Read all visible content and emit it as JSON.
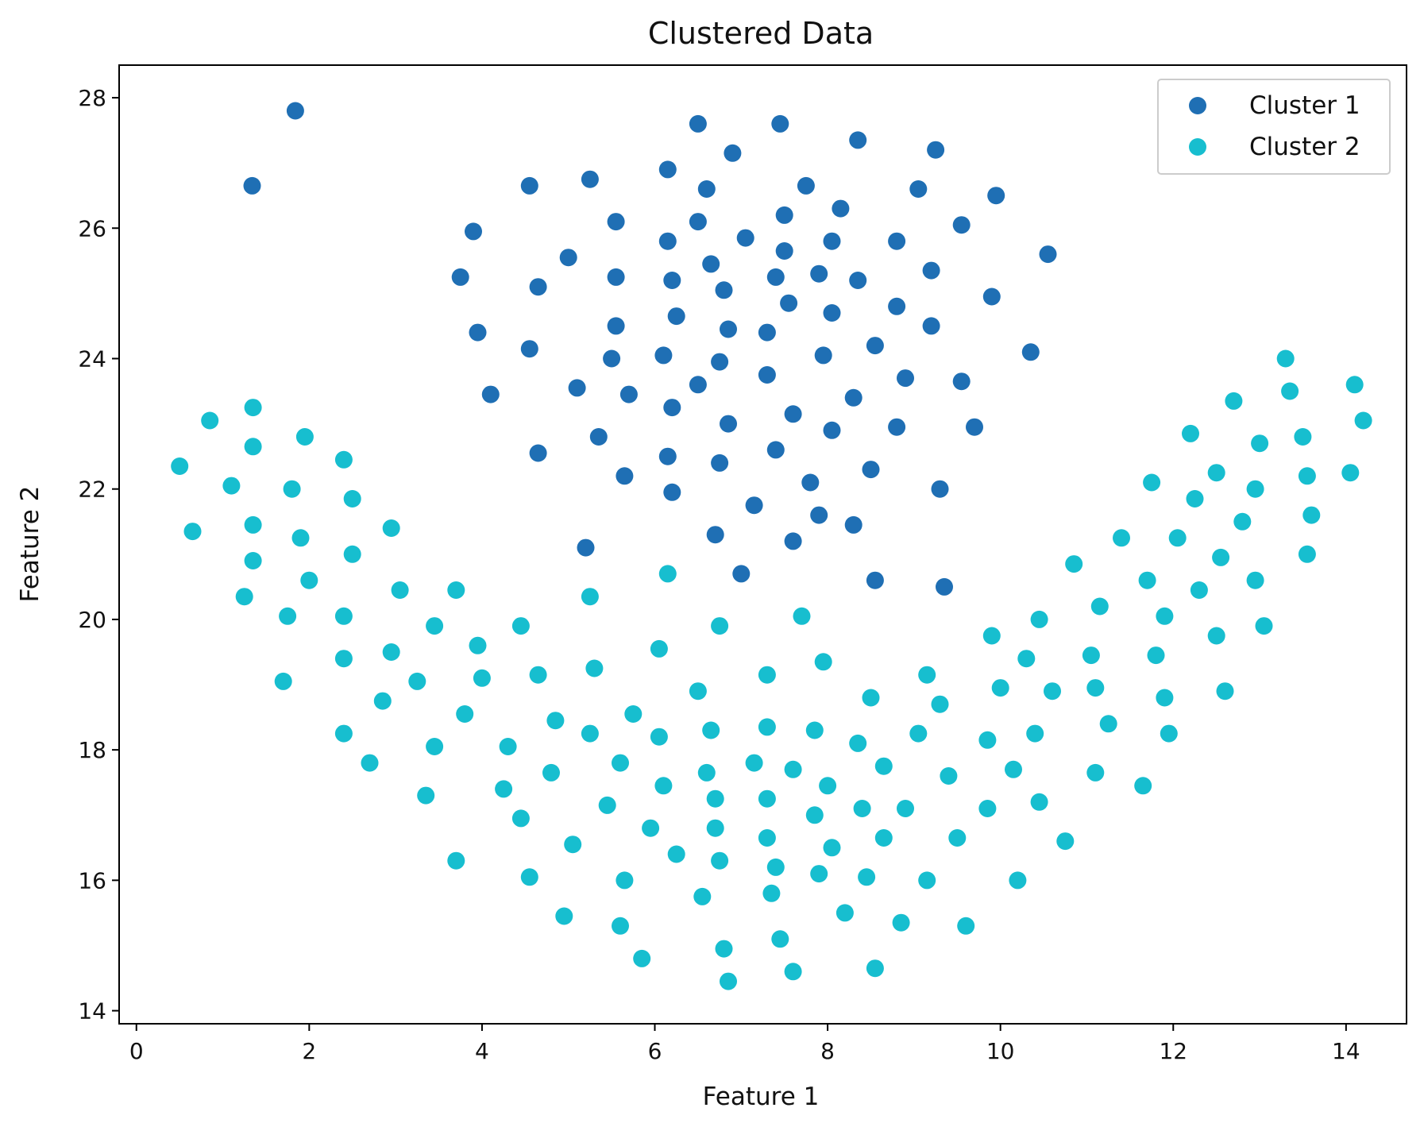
{
  "chart_data": {
    "type": "scatter",
    "title": "Clustered Data",
    "xlabel": "Feature 1",
    "ylabel": "Feature 2",
    "xlim": [
      -0.2,
      14.7
    ],
    "ylim": [
      13.8,
      28.5
    ],
    "xticks": [
      0,
      2,
      4,
      6,
      8,
      10,
      12,
      14
    ],
    "yticks": [
      14,
      16,
      18,
      20,
      22,
      24,
      26,
      28
    ],
    "grid": false,
    "legend_position": "top-right",
    "series": [
      {
        "name": "Cluster 1",
        "color": "#1f6fb4",
        "points": [
          [
            1.84,
            27.8
          ],
          [
            1.34,
            26.65
          ],
          [
            3.9,
            25.95
          ],
          [
            3.75,
            25.25
          ],
          [
            3.95,
            24.4
          ],
          [
            4.1,
            23.45
          ],
          [
            4.55,
            26.65
          ],
          [
            4.65,
            25.1
          ],
          [
            4.55,
            24.15
          ],
          [
            4.65,
            22.55
          ],
          [
            5.0,
            25.55
          ],
          [
            5.1,
            23.55
          ],
          [
            5.25,
            26.75
          ],
          [
            5.2,
            21.1
          ],
          [
            5.35,
            22.8
          ],
          [
            5.55,
            26.1
          ],
          [
            5.55,
            25.25
          ],
          [
            5.55,
            24.5
          ],
          [
            5.5,
            24.0
          ],
          [
            5.7,
            23.45
          ],
          [
            5.65,
            22.2
          ],
          [
            6.15,
            26.9
          ],
          [
            6.15,
            25.8
          ],
          [
            6.2,
            25.2
          ],
          [
            6.25,
            24.65
          ],
          [
            6.1,
            24.05
          ],
          [
            6.2,
            23.25
          ],
          [
            6.15,
            22.5
          ],
          [
            6.2,
            21.95
          ],
          [
            6.5,
            27.6
          ],
          [
            6.5,
            26.1
          ],
          [
            6.6,
            26.6
          ],
          [
            6.65,
            25.45
          ],
          [
            6.5,
            23.6
          ],
          [
            6.75,
            23.95
          ],
          [
            6.8,
            25.05
          ],
          [
            6.85,
            24.45
          ],
          [
            6.85,
            23.0
          ],
          [
            6.75,
            22.4
          ],
          [
            6.7,
            21.3
          ],
          [
            6.9,
            27.15
          ],
          [
            7.05,
            25.85
          ],
          [
            7.0,
            20.7
          ],
          [
            7.15,
            21.75
          ],
          [
            7.3,
            24.4
          ],
          [
            7.3,
            23.75
          ],
          [
            7.4,
            25.25
          ],
          [
            7.4,
            22.6
          ],
          [
            7.45,
            27.6
          ],
          [
            7.5,
            26.2
          ],
          [
            7.5,
            25.65
          ],
          [
            7.55,
            24.85
          ],
          [
            7.6,
            23.15
          ],
          [
            7.6,
            21.2
          ],
          [
            7.75,
            26.65
          ],
          [
            7.8,
            22.1
          ],
          [
            7.9,
            25.3
          ],
          [
            7.9,
            21.6
          ],
          [
            7.95,
            24.05
          ],
          [
            8.05,
            25.8
          ],
          [
            8.05,
            24.7
          ],
          [
            8.05,
            22.9
          ],
          [
            8.15,
            26.3
          ],
          [
            8.3,
            23.4
          ],
          [
            8.3,
            21.45
          ],
          [
            8.35,
            27.35
          ],
          [
            8.35,
            25.2
          ],
          [
            8.5,
            22.3
          ],
          [
            8.55,
            24.2
          ],
          [
            8.55,
            20.6
          ],
          [
            8.8,
            25.8
          ],
          [
            8.8,
            24.8
          ],
          [
            8.8,
            22.95
          ],
          [
            8.9,
            23.7
          ],
          [
            9.05,
            26.6
          ],
          [
            9.2,
            25.35
          ],
          [
            9.2,
            24.5
          ],
          [
            9.25,
            27.2
          ],
          [
            9.3,
            22.0
          ],
          [
            9.35,
            20.5
          ],
          [
            9.55,
            26.05
          ],
          [
            9.55,
            23.65
          ],
          [
            9.7,
            22.95
          ],
          [
            9.9,
            24.95
          ],
          [
            9.95,
            26.5
          ],
          [
            10.35,
            24.1
          ],
          [
            10.55,
            25.6
          ]
        ]
      },
      {
        "name": "Cluster 2",
        "color": "#17becf",
        "points": [
          [
            0.5,
            22.35
          ],
          [
            0.65,
            21.35
          ],
          [
            0.85,
            23.05
          ],
          [
            1.1,
            22.05
          ],
          [
            1.25,
            20.35
          ],
          [
            1.35,
            23.25
          ],
          [
            1.35,
            22.65
          ],
          [
            1.35,
            21.45
          ],
          [
            1.35,
            20.9
          ],
          [
            1.7,
            19.05
          ],
          [
            1.75,
            20.05
          ],
          [
            1.8,
            22.0
          ],
          [
            1.9,
            21.25
          ],
          [
            1.95,
            22.8
          ],
          [
            2.0,
            20.6
          ],
          [
            2.4,
            22.45
          ],
          [
            2.5,
            21.85
          ],
          [
            2.5,
            21.0
          ],
          [
            2.4,
            20.05
          ],
          [
            2.4,
            19.4
          ],
          [
            2.4,
            18.25
          ],
          [
            2.7,
            17.8
          ],
          [
            2.85,
            18.75
          ],
          [
            2.95,
            19.5
          ],
          [
            2.95,
            21.4
          ],
          [
            3.05,
            20.45
          ],
          [
            3.25,
            19.05
          ],
          [
            3.35,
            17.3
          ],
          [
            3.45,
            19.9
          ],
          [
            3.45,
            18.05
          ],
          [
            3.7,
            20.45
          ],
          [
            3.7,
            16.3
          ],
          [
            3.8,
            18.55
          ],
          [
            3.95,
            19.6
          ],
          [
            4.0,
            19.1
          ],
          [
            4.3,
            18.05
          ],
          [
            4.25,
            17.4
          ],
          [
            4.45,
            16.95
          ],
          [
            4.45,
            19.9
          ],
          [
            4.55,
            16.05
          ],
          [
            4.65,
            19.15
          ],
          [
            4.85,
            18.45
          ],
          [
            4.8,
            17.65
          ],
          [
            4.95,
            15.45
          ],
          [
            5.05,
            16.55
          ],
          [
            5.25,
            20.35
          ],
          [
            5.25,
            18.25
          ],
          [
            5.3,
            19.25
          ],
          [
            5.45,
            17.15
          ],
          [
            5.6,
            17.8
          ],
          [
            5.6,
            15.3
          ],
          [
            5.65,
            16.0
          ],
          [
            5.75,
            18.55
          ],
          [
            5.85,
            14.8
          ],
          [
            5.95,
            16.8
          ],
          [
            6.05,
            19.55
          ],
          [
            6.05,
            18.2
          ],
          [
            6.1,
            17.45
          ],
          [
            6.15,
            20.7
          ],
          [
            6.25,
            16.4
          ],
          [
            6.5,
            18.9
          ],
          [
            6.55,
            15.75
          ],
          [
            6.6,
            17.65
          ],
          [
            6.65,
            18.3
          ],
          [
            6.7,
            17.25
          ],
          [
            6.7,
            16.8
          ],
          [
            6.75,
            19.9
          ],
          [
            6.75,
            16.3
          ],
          [
            6.8,
            14.95
          ],
          [
            6.85,
            14.45
          ],
          [
            7.15,
            17.8
          ],
          [
            7.3,
            19.15
          ],
          [
            7.3,
            18.35
          ],
          [
            7.3,
            17.25
          ],
          [
            7.3,
            16.65
          ],
          [
            7.35,
            15.8
          ],
          [
            7.4,
            16.2
          ],
          [
            7.45,
            15.1
          ],
          [
            7.6,
            17.7
          ],
          [
            7.6,
            14.6
          ],
          [
            7.7,
            20.05
          ],
          [
            7.85,
            17.0
          ],
          [
            7.85,
            18.3
          ],
          [
            7.9,
            16.1
          ],
          [
            7.95,
            19.35
          ],
          [
            8.0,
            17.45
          ],
          [
            8.05,
            16.5
          ],
          [
            8.2,
            15.5
          ],
          [
            8.35,
            18.1
          ],
          [
            8.4,
            17.1
          ],
          [
            8.45,
            16.05
          ],
          [
            8.5,
            18.8
          ],
          [
            8.55,
            14.65
          ],
          [
            8.65,
            17.75
          ],
          [
            8.65,
            16.65
          ],
          [
            8.85,
            15.35
          ],
          [
            8.9,
            17.1
          ],
          [
            9.05,
            18.25
          ],
          [
            9.15,
            19.15
          ],
          [
            9.15,
            16.0
          ],
          [
            9.3,
            18.7
          ],
          [
            9.4,
            17.6
          ],
          [
            9.5,
            16.65
          ],
          [
            9.6,
            15.3
          ],
          [
            9.85,
            18.15
          ],
          [
            9.85,
            17.1
          ],
          [
            9.9,
            19.75
          ],
          [
            10.0,
            18.95
          ],
          [
            10.15,
            17.7
          ],
          [
            10.2,
            16.0
          ],
          [
            10.3,
            19.4
          ],
          [
            10.4,
            18.25
          ],
          [
            10.45,
            20.0
          ],
          [
            10.45,
            17.2
          ],
          [
            10.6,
            18.9
          ],
          [
            10.75,
            16.6
          ],
          [
            10.85,
            20.85
          ],
          [
            11.05,
            19.45
          ],
          [
            11.1,
            17.65
          ],
          [
            11.1,
            18.95
          ],
          [
            11.15,
            20.2
          ],
          [
            11.25,
            18.4
          ],
          [
            11.4,
            21.25
          ],
          [
            11.65,
            17.45
          ],
          [
            11.7,
            20.6
          ],
          [
            11.75,
            22.1
          ],
          [
            11.8,
            19.45
          ],
          [
            11.9,
            20.05
          ],
          [
            11.9,
            18.8
          ],
          [
            11.95,
            18.25
          ],
          [
            12.05,
            21.25
          ],
          [
            12.2,
            22.85
          ],
          [
            12.25,
            21.85
          ],
          [
            12.3,
            20.45
          ],
          [
            12.5,
            22.25
          ],
          [
            12.5,
            19.75
          ],
          [
            12.55,
            20.95
          ],
          [
            12.6,
            18.9
          ],
          [
            12.7,
            23.35
          ],
          [
            12.8,
            21.5
          ],
          [
            12.95,
            22.0
          ],
          [
            12.95,
            20.6
          ],
          [
            13.0,
            22.7
          ],
          [
            13.05,
            19.9
          ],
          [
            13.3,
            24.0
          ],
          [
            13.35,
            23.5
          ],
          [
            13.5,
            22.8
          ],
          [
            13.55,
            22.2
          ],
          [
            13.55,
            21.0
          ],
          [
            13.6,
            21.6
          ],
          [
            14.05,
            22.25
          ],
          [
            14.1,
            23.6
          ],
          [
            14.2,
            23.05
          ]
        ]
      }
    ]
  }
}
